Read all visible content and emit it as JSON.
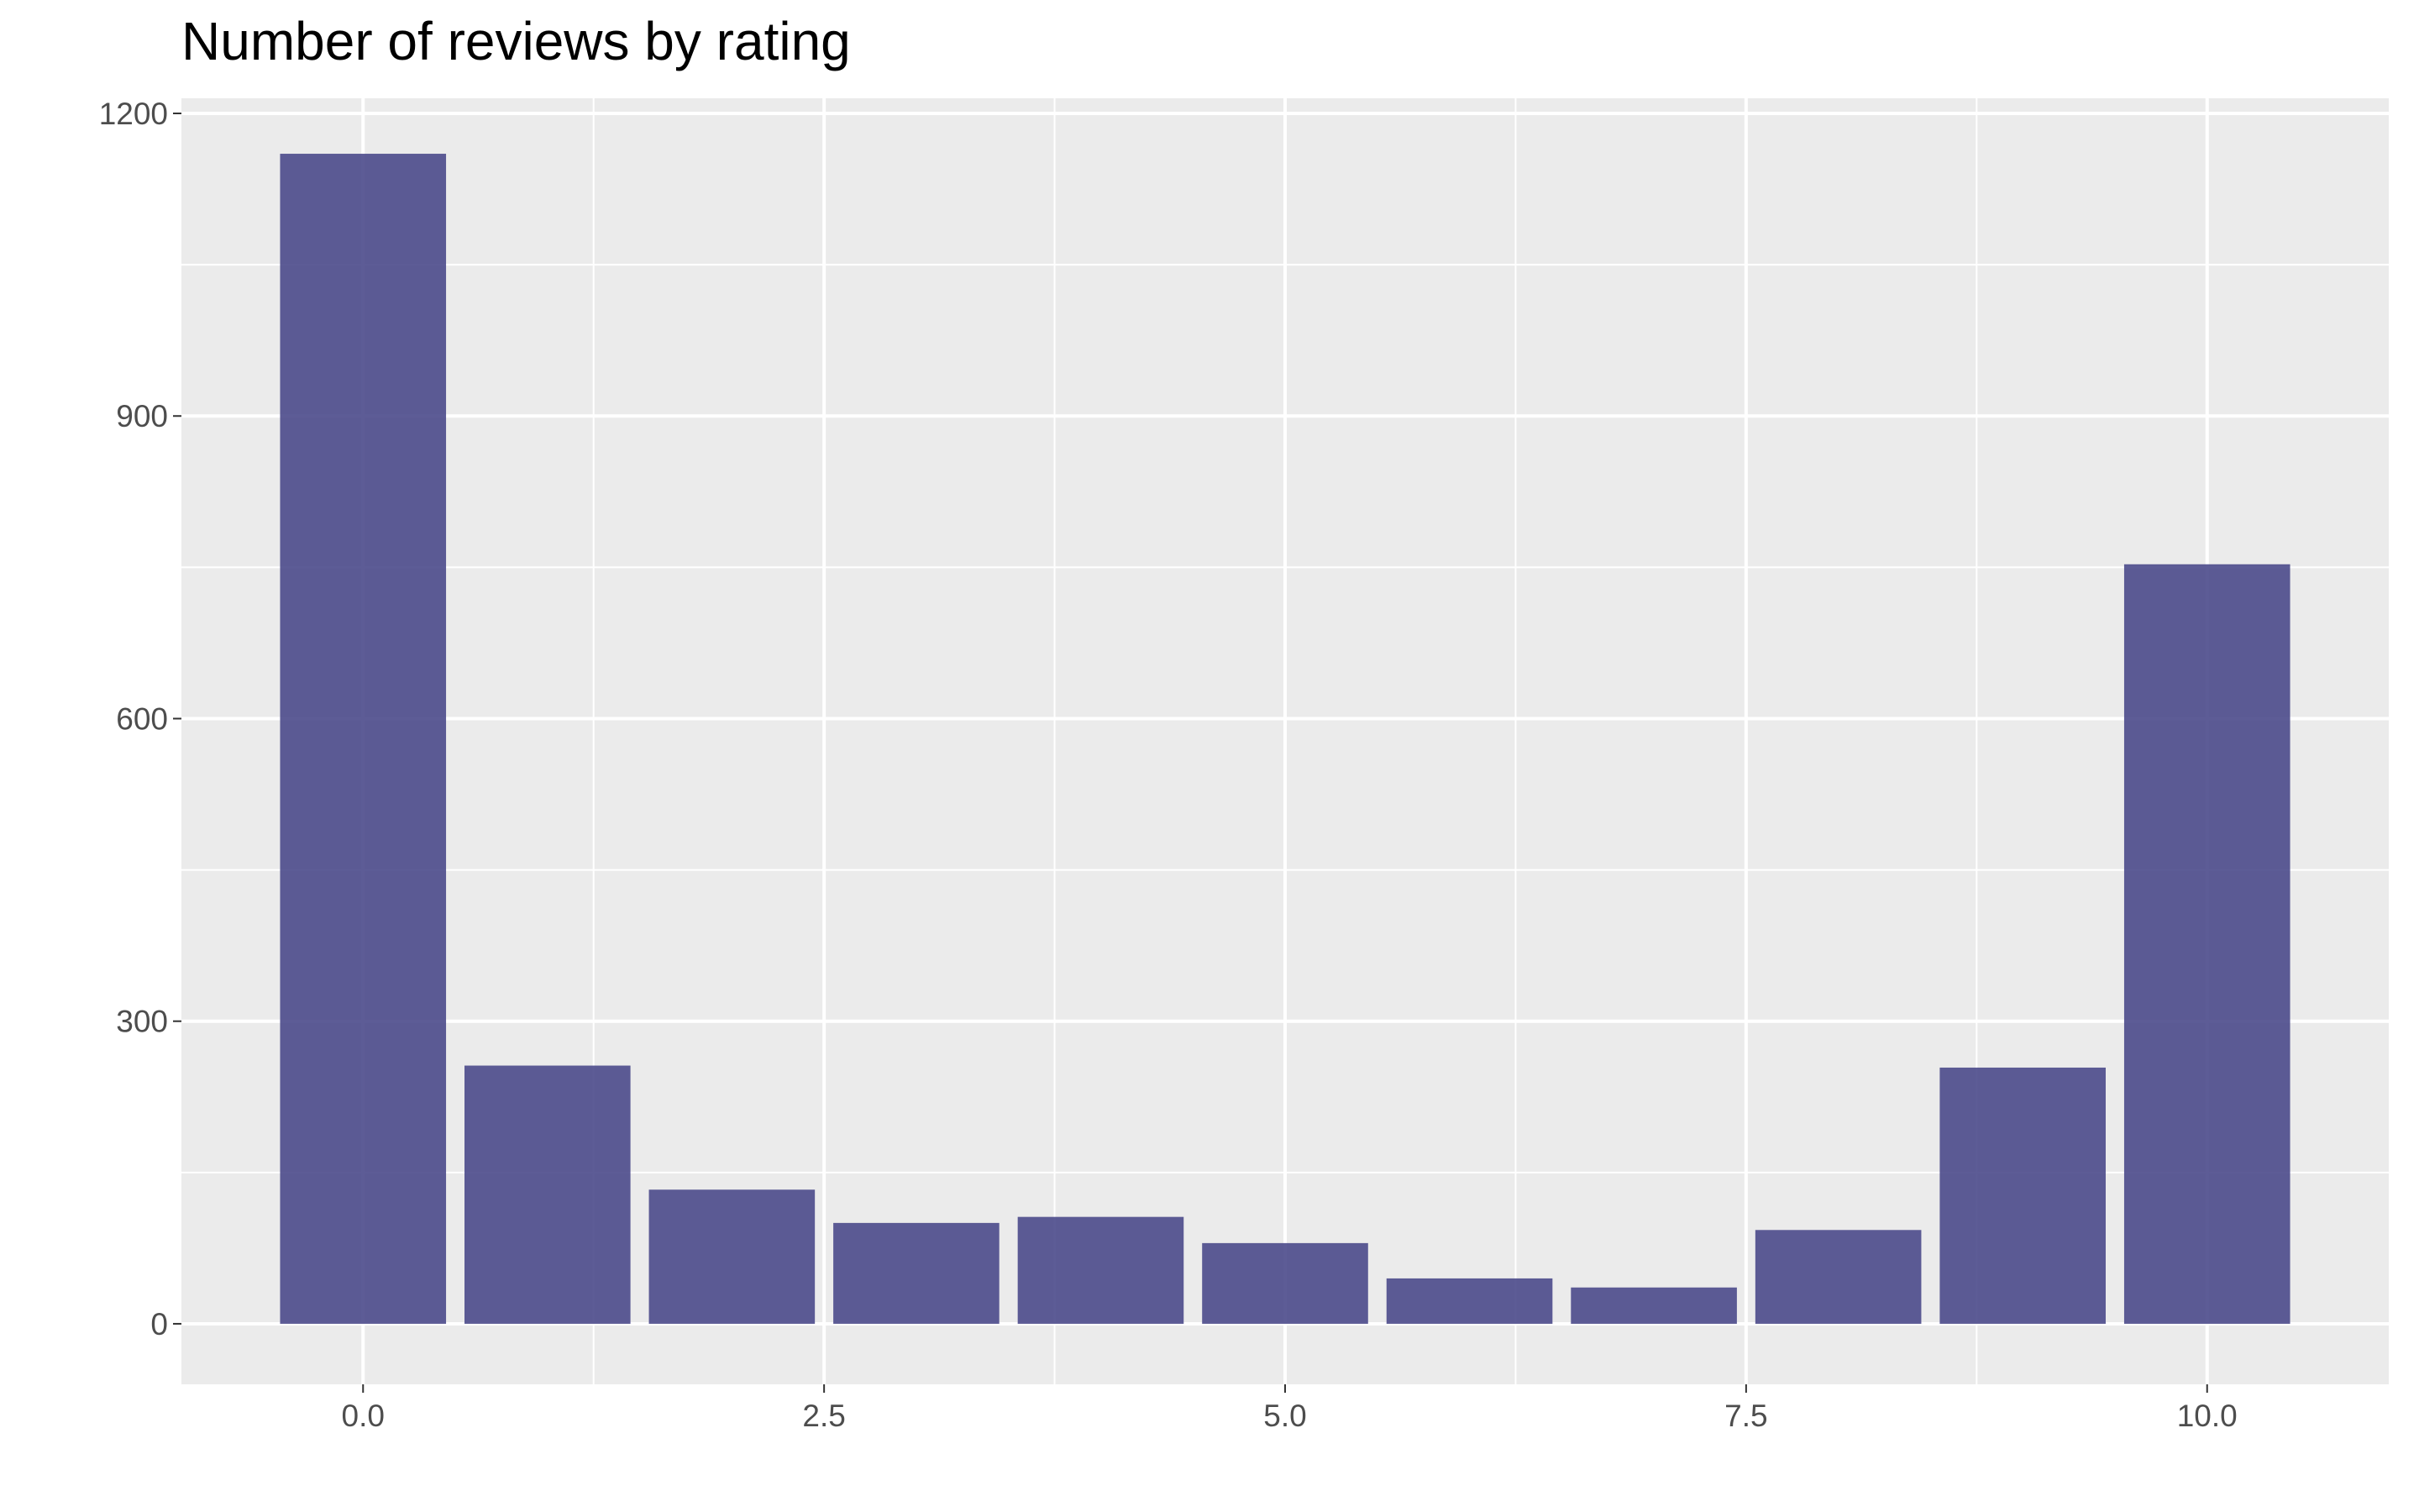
{
  "chart_data": {
    "type": "bar",
    "title": "Number of reviews by rating",
    "xlabel": "",
    "ylabel": "",
    "x": [
      0,
      1,
      2,
      3,
      4,
      5,
      6,
      7,
      8,
      9,
      10
    ],
    "values": [
      1160,
      256,
      133,
      100,
      106,
      80,
      45,
      36,
      93,
      254,
      753
    ],
    "xlim": [
      -0.985,
      10.985
    ],
    "ylim": [
      -60,
      1215
    ],
    "x_ticks": [
      0,
      2.5,
      5,
      7.5,
      10
    ],
    "x_tick_labels": [
      "0.0",
      "2.5",
      "5.0",
      "7.5",
      "10.0"
    ],
    "y_ticks": [
      0,
      300,
      600,
      900,
      1200
    ],
    "y_tick_labels": [
      "0",
      "300",
      "600",
      "900",
      "1200"
    ],
    "grid": true,
    "legend": "none",
    "colors": {
      "bar": "#4B4A8B",
      "panel_background": "#EBEBEB",
      "grid": "#FFFFFF",
      "tick_text": "#4D4D4D"
    }
  }
}
